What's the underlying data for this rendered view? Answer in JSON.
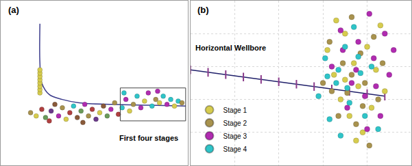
{
  "chart_data": [
    {
      "type": "scatter",
      "title": "(a)",
      "annotations": [
        "First four stages"
      ],
      "xlim": [
        0,
        100
      ],
      "ylim": [
        0,
        100
      ],
      "grid": false,
      "tick_labels": false,
      "wellbore": {
        "color": "#3c3c8c",
        "x": [
          21,
          21,
          22,
          26,
          33,
          42,
          60,
          80,
          99
        ],
        "y": [
          86,
          62,
          50,
          43,
          40,
          38,
          37,
          36.5,
          36
        ]
      },
      "highlight": {
        "x": [
          64,
          99
        ],
        "y": [
          27,
          47
        ]
      },
      "x": [
        21,
        21,
        21,
        21,
        21,
        21,
        21,
        21,
        16,
        19,
        22,
        24,
        27,
        29,
        31,
        33,
        35,
        37,
        39,
        41,
        43,
        45,
        47,
        49,
        51,
        53,
        55,
        57,
        59,
        61,
        63,
        65,
        67,
        69,
        71,
        73,
        75,
        77,
        79,
        81,
        83,
        85,
        87,
        89,
        91,
        93,
        95,
        97,
        66,
        84,
        26,
        44
      ],
      "y": [
        44,
        46,
        48,
        50,
        52,
        54,
        56,
        58,
        32,
        30,
        34,
        29,
        33,
        37,
        30,
        35,
        28,
        32,
        36,
        29,
        33,
        37,
        30,
        34,
        28,
        32,
        36,
        30,
        34,
        38,
        31,
        35,
        40,
        33,
        37,
        42,
        35,
        39,
        44,
        36,
        40,
        38,
        42,
        37,
        40,
        36,
        39,
        38,
        44,
        45,
        27,
        26
      ],
      "colors": [
        "#d6cc4e",
        "#d6cc4e",
        "#d6cc4e",
        "#d6cc4e",
        "#d6cc4e",
        "#d6cc4e",
        "#d6cc4e",
        "#d6cc4e",
        "#a8924e",
        "#d6cc4e",
        "#b04040",
        "#6a9a5a",
        "#6a3a8a",
        "#8a5a3a",
        "#b02cb0",
        "#a8924e",
        "#d6cc4e",
        "#b04040",
        "#2fc4c8",
        "#8a5a3a",
        "#6a9a5a",
        "#b02cb0",
        "#a8924e",
        "#b04040",
        "#6a3a8a",
        "#d6cc4e",
        "#8a5a3a",
        "#6a9a5a",
        "#b02cb0",
        "#a8924e",
        "#b04040",
        "#2fc4c8",
        "#b02cb0",
        "#d6cc4e",
        "#a8924e",
        "#2fc4c8",
        "#b02cb0",
        "#d6cc4e",
        "#b02cb0",
        "#2fc4c8",
        "#a8924e",
        "#d6cc4e",
        "#2fc4c8",
        "#b02cb0",
        "#2fc4c8",
        "#d6cc4e",
        "#2fc4c8",
        "#a8924e",
        "#2fc4c8",
        "#b02cb0",
        "#b04040",
        "#8a5a3a"
      ]
    },
    {
      "type": "scatter",
      "title": "(b)",
      "annotations": [
        "Horizontal Wellbore"
      ],
      "xlim": [
        0,
        100
      ],
      "ylim": [
        0,
        100
      ],
      "xticks": [
        0,
        20,
        40,
        60,
        80,
        100
      ],
      "yticks": [
        0,
        20,
        40,
        60,
        80,
        100
      ],
      "grid": true,
      "tick_labels": false,
      "legend": "lower left",
      "wellbore": {
        "color": "#20206a",
        "marker": "line-ns",
        "x": [
          0,
          8,
          16,
          24,
          32,
          40,
          48,
          56,
          64,
          72,
          80,
          88
        ],
        "y": [
          58,
          56.5,
          55.1,
          53.6,
          52.2,
          50.7,
          49.3,
          47.8,
          46.4,
          44.9,
          43.5,
          42
        ]
      },
      "series": [
        {
          "name": "Stage 1",
          "color": "#d6cc4e",
          "x": [
            62,
            65,
            68,
            70,
            72,
            74,
            76,
            78,
            80,
            82,
            84,
            86,
            70,
            75,
            66,
            88
          ],
          "y": [
            70,
            55,
            40,
            80,
            30,
            62,
            48,
            20,
            72,
            35,
            58,
            85,
            52,
            15,
            88,
            45
          ]
        },
        {
          "name": "Stage 2",
          "color": "#a8924e",
          "x": [
            60,
            63,
            67,
            69,
            71,
            73,
            75,
            77,
            79,
            81,
            83,
            85,
            73,
            78,
            64,
            87
          ],
          "y": [
            50,
            75,
            30,
            62,
            44,
            90,
            25,
            68,
            50,
            12,
            78,
            40,
            55,
            36,
            45,
            62
          ]
        },
        {
          "name": "Stage 3",
          "color": "#b02cb0",
          "x": [
            64,
            68,
            71,
            73,
            76,
            79,
            81,
            83,
            86,
            88,
            90,
            92,
            75,
            80,
            84,
            69
          ],
          "y": [
            60,
            82,
            35,
            50,
            75,
            42,
            92,
            65,
            30,
            80,
            55,
            70,
            58,
            22,
            48,
            70
          ]
        },
        {
          "name": "Stage 4",
          "color": "#2fc4c8",
          "x": [
            58,
            61,
            63,
            66,
            68,
            70,
            72,
            74,
            77,
            79,
            82,
            85,
            67,
            71,
            76,
            62
          ],
          "y": [
            42,
            65,
            28,
            50,
            18,
            72,
            38,
            84,
            56,
            30,
            60,
            22,
            58,
            47,
            66,
            54
          ]
        }
      ]
    }
  ]
}
